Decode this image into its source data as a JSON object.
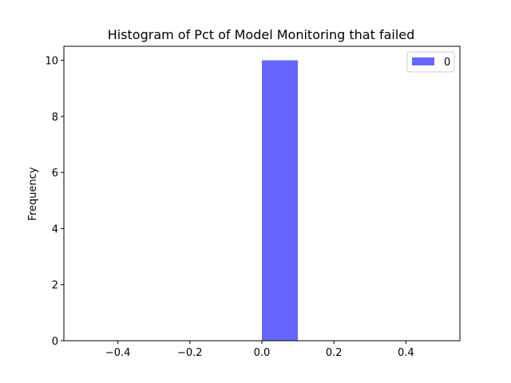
{
  "chart_data": {
    "type": "bar",
    "title": "Histogram of Pct of Model Monitoring that failed",
    "xlabel": "",
    "ylabel": "Frequency",
    "xlim": [
      -0.55,
      0.55
    ],
    "ylim": [
      0,
      10.5
    ],
    "x_ticks": [
      -0.4,
      -0.2,
      0.0,
      0.2,
      0.4
    ],
    "x_tick_labels": [
      "−0.4",
      "−0.2",
      "0.0",
      "0.2",
      "0.4"
    ],
    "y_ticks": [
      0,
      2,
      4,
      6,
      8,
      10
    ],
    "y_tick_labels": [
      "0",
      "2",
      "4",
      "6",
      "8",
      "10"
    ],
    "grid": false,
    "legend_position": "top-right",
    "series": [
      {
        "name": "0",
        "color": "#6666ff",
        "bins": [
          {
            "x0": 0.0,
            "x1": 0.1,
            "value": 10
          }
        ]
      }
    ]
  }
}
